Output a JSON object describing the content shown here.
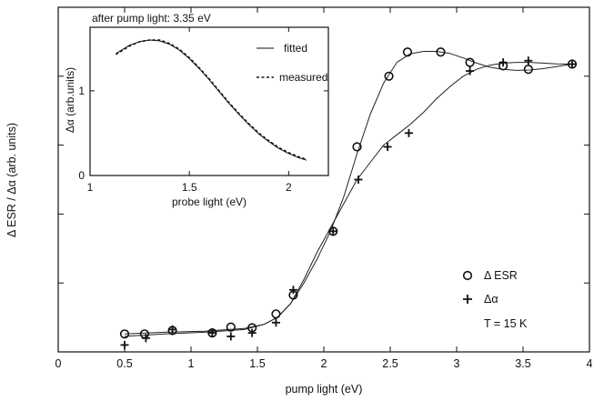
{
  "chart_data": {
    "main": {
      "type": "scatter",
      "xlabel": "pump light (eV)",
      "ylabel": "Δ ESR / Δα  (arb. units)",
      "xlim": [
        0,
        4
      ],
      "ylim": [
        0,
        1
      ],
      "x_ticks": [
        "0",
        "0.5",
        "1",
        "1.5",
        "2",
        "2.5",
        "3",
        "3.5",
        "4"
      ],
      "x_tick_values": [
        0,
        0.5,
        1,
        1.5,
        2,
        2.5,
        3,
        3.5,
        4
      ],
      "y_minor_tick_values": [
        0.2,
        0.4,
        0.6,
        0.8
      ],
      "grid": false,
      "legend_position": "right",
      "series": [
        {
          "name": "Δ ESR",
          "marker": "circle",
          "x": [
            0.5,
            0.65,
            0.86,
            1.16,
            1.3,
            1.46,
            1.64,
            1.77,
            2.07,
            2.25,
            2.49,
            2.63,
            2.88,
            3.1,
            3.35,
            3.54,
            3.87
          ],
          "y": [
            0.052,
            0.052,
            0.062,
            0.055,
            0.072,
            0.07,
            0.11,
            0.165,
            0.35,
            0.595,
            0.8,
            0.87,
            0.87,
            0.84,
            0.83,
            0.82,
            0.835
          ]
        },
        {
          "name": "Δα",
          "marker": "plus",
          "x": [
            0.5,
            0.66,
            0.86,
            1.16,
            1.3,
            1.46,
            1.64,
            1.77,
            2.07,
            2.26,
            2.48,
            2.64,
            3.1,
            3.35,
            3.54,
            3.87
          ],
          "y": [
            0.02,
            0.04,
            0.065,
            0.055,
            0.045,
            0.055,
            0.085,
            0.18,
            0.35,
            0.5,
            0.595,
            0.635,
            0.815,
            0.84,
            0.845,
            0.835
          ]
        }
      ],
      "fit_curves": [
        {
          "for": "Δ ESR",
          "x": [
            0.5,
            0.8,
            1.1,
            1.4,
            1.55,
            1.65,
            1.75,
            1.85,
            1.95,
            2.05,
            2.15,
            2.25,
            2.35,
            2.45,
            2.55,
            2.65,
            2.75,
            2.85,
            2.95,
            3.05,
            3.15,
            3.25,
            3.35,
            3.45,
            3.55,
            3.65,
            3.75,
            3.87
          ],
          "y": [
            0.052,
            0.057,
            0.06,
            0.068,
            0.08,
            0.1,
            0.14,
            0.2,
            0.27,
            0.35,
            0.45,
            0.575,
            0.69,
            0.78,
            0.84,
            0.865,
            0.872,
            0.872,
            0.866,
            0.853,
            0.838,
            0.826,
            0.82,
            0.817,
            0.818,
            0.822,
            0.828,
            0.835
          ]
        },
        {
          "for": "Δα",
          "x": [
            0.5,
            0.8,
            1.1,
            1.4,
            1.55,
            1.65,
            1.75,
            1.85,
            1.95,
            2.05,
            2.15,
            2.25,
            2.35,
            2.45,
            2.55,
            2.65,
            2.75,
            2.85,
            2.95,
            3.05,
            3.15,
            3.25,
            3.35,
            3.45,
            3.55,
            3.65,
            3.75,
            3.87
          ],
          "y": [
            0.045,
            0.052,
            0.057,
            0.065,
            0.08,
            0.1,
            0.14,
            0.21,
            0.29,
            0.36,
            0.43,
            0.5,
            0.55,
            0.6,
            0.63,
            0.66,
            0.695,
            0.735,
            0.77,
            0.8,
            0.82,
            0.832,
            0.838,
            0.84,
            0.84,
            0.838,
            0.836,
            0.835
          ]
        }
      ],
      "annotations": [
        "T = 15 K"
      ]
    },
    "inset": {
      "type": "line",
      "title": "after pump light: 3.35 eV",
      "xlabel": "probe light (eV)",
      "ylabel": "Δα (arb.units)",
      "xlim": [
        1,
        2.2
      ],
      "ylim": [
        0,
        1.75
      ],
      "x_ticks": [
        "1",
        "1.5",
        "2"
      ],
      "x_tick_values": [
        1,
        1.5,
        2
      ],
      "y_ticks": [
        "0",
        "1"
      ],
      "y_tick_values": [
        0,
        1
      ],
      "legend_position": "top-right",
      "series": [
        {
          "name": "fitted",
          "style": "solid",
          "x": [
            1.13,
            1.2,
            1.25,
            1.3,
            1.35,
            1.4,
            1.45,
            1.5,
            1.55,
            1.6,
            1.65,
            1.7,
            1.75,
            1.8,
            1.85,
            1.9,
            1.95,
            2.0,
            2.05,
            2.09
          ],
          "y": [
            1.44,
            1.54,
            1.58,
            1.6,
            1.59,
            1.55,
            1.48,
            1.38,
            1.26,
            1.13,
            0.99,
            0.85,
            0.72,
            0.6,
            0.49,
            0.4,
            0.32,
            0.26,
            0.21,
            0.18
          ]
        },
        {
          "name": "measured",
          "style": "dashed",
          "x": [
            1.13,
            1.2,
            1.25,
            1.3,
            1.35,
            1.4,
            1.45,
            1.5,
            1.55,
            1.6,
            1.65,
            1.7,
            1.75,
            1.8,
            1.85,
            1.9,
            1.95,
            2.0,
            2.05,
            2.09
          ],
          "y": [
            1.43,
            1.53,
            1.58,
            1.6,
            1.6,
            1.56,
            1.49,
            1.39,
            1.27,
            1.14,
            1.0,
            0.86,
            0.73,
            0.61,
            0.5,
            0.41,
            0.33,
            0.27,
            0.22,
            0.19
          ]
        }
      ]
    }
  }
}
